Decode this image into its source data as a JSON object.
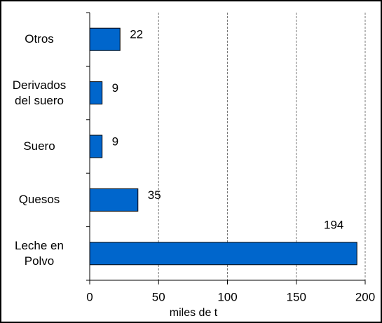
{
  "chart_data": {
    "type": "hbar",
    "categories": [
      "Otros",
      "Derivados del suero",
      "Suero",
      "Quesos",
      "Leche en Polvo"
    ],
    "values": [
      22,
      9,
      9,
      35,
      194
    ],
    "color": "#0066cc",
    "xlabel": "miles de t",
    "xlim": [
      0,
      200
    ],
    "xticks": [
      0,
      50,
      100,
      150,
      200
    ],
    "grid": true
  }
}
